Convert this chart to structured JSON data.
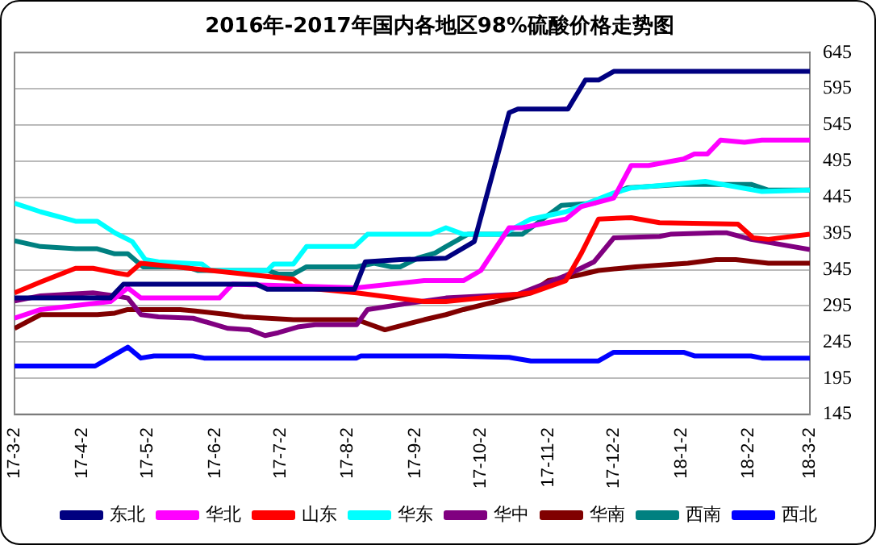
{
  "chart_data": {
    "type": "line",
    "title": "2016年-2017年国内各地区98%硫酸价格走势图",
    "xlim": [
      "2017-03-02",
      "2018-03-02"
    ],
    "xticks": [
      {
        "value": "2017-03-02",
        "label": "17-3-2"
      },
      {
        "value": "2017-04-02",
        "label": "17-4-2"
      },
      {
        "value": "2017-05-02",
        "label": "17-5-2"
      },
      {
        "value": "2017-06-02",
        "label": "17-6-2"
      },
      {
        "value": "2017-07-02",
        "label": "17-7-2"
      },
      {
        "value": "2017-08-02",
        "label": "17-8-2"
      },
      {
        "value": "2017-09-02",
        "label": "17-9-2"
      },
      {
        "value": "2017-10-02",
        "label": "17-10-2"
      },
      {
        "value": "2017-11-02",
        "label": "17-11-2"
      },
      {
        "value": "2017-12-02",
        "label": "17-12-2"
      },
      {
        "value": "2018-01-02",
        "label": "18-1-2"
      },
      {
        "value": "2018-02-02",
        "label": "18-2-2"
      },
      {
        "value": "2018-03-02",
        "label": "18-3-2"
      }
    ],
    "ylim": [
      145,
      645
    ],
    "yticks": [
      145,
      195,
      245,
      295,
      345,
      395,
      445,
      495,
      545,
      595,
      645
    ],
    "grid": "y",
    "legend": "bottom",
    "marker": "none",
    "line_style": "solid",
    "series": [
      {
        "name": "东北",
        "color": "#000080",
        "x": [
          "2017-03-02",
          "2017-04-15",
          "2017-04-21",
          "2017-06-21",
          "2017-06-26",
          "2017-08-05",
          "2017-08-10",
          "2017-08-26",
          "2017-09-16",
          "2017-09-29",
          "2017-10-15",
          "2017-10-19",
          "2017-11-11",
          "2017-11-19",
          "2017-11-25",
          "2017-12-02",
          "2018-03-02"
        ],
        "values": [
          306,
          306,
          325,
          325,
          318,
          318,
          356,
          359,
          361,
          384,
          562,
          567,
          567,
          607,
          607,
          619,
          619
        ]
      },
      {
        "name": "华北",
        "color": "#ff00ff",
        "x": [
          "2017-03-02",
          "2017-03-14",
          "2017-04-15",
          "2017-04-23",
          "2017-04-29",
          "2017-06-04",
          "2017-06-10",
          "2017-08-06",
          "2017-09-06",
          "2017-09-24",
          "2017-10-02",
          "2017-10-15",
          "2017-10-21",
          "2017-11-10",
          "2017-11-17",
          "2017-12-02",
          "2017-12-10",
          "2017-12-18",
          "2018-01-03",
          "2018-01-08",
          "2018-01-14",
          "2018-01-20",
          "2018-01-31",
          "2018-02-08",
          "2018-03-02"
        ],
        "values": [
          278,
          290,
          301,
          320,
          306,
          306,
          325,
          320,
          330,
          330,
          344,
          403,
          403,
          415,
          432,
          444,
          489,
          489,
          498,
          505,
          505,
          524,
          521,
          524,
          524
        ]
      },
      {
        "name": "山东",
        "color": "#ff0000",
        "x": [
          "2017-03-02",
          "2017-03-14",
          "2017-03-30",
          "2017-04-07",
          "2017-04-17",
          "2017-04-23",
          "2017-04-29",
          "2017-05-31",
          "2017-07-08",
          "2017-07-13",
          "2017-08-06",
          "2017-09-06",
          "2017-09-16",
          "2017-10-25",
          "2017-11-10",
          "2017-11-17",
          "2017-11-25",
          "2017-12-10",
          "2017-12-23",
          "2018-01-28",
          "2018-02-04",
          "2018-02-11",
          "2018-03-02"
        ],
        "values": [
          313,
          328,
          347,
          347,
          341,
          338,
          354,
          344,
          332,
          320,
          313,
          301,
          301,
          313,
          330,
          367,
          415,
          417,
          410,
          408,
          389,
          387,
          394
        ]
      },
      {
        "name": "华东",
        "color": "#00ffff",
        "x": [
          "2017-03-02",
          "2017-03-14",
          "2017-03-30",
          "2017-04-09",
          "2017-04-17",
          "2017-04-25",
          "2017-05-01",
          "2017-05-07",
          "2017-05-27",
          "2017-05-31",
          "2017-06-26",
          "2017-06-29",
          "2017-07-08",
          "2017-07-14",
          "2017-08-05",
          "2017-08-11",
          "2017-09-09",
          "2017-09-16",
          "2017-09-24",
          "2017-10-12",
          "2017-10-25",
          "2017-11-10",
          "2017-11-20",
          "2017-12-02",
          "2017-12-10",
          "2018-01-13",
          "2018-01-26",
          "2018-02-08",
          "2018-03-02"
        ],
        "values": [
          437,
          425,
          412,
          412,
          396,
          384,
          359,
          356,
          353,
          344,
          344,
          353,
          353,
          377,
          377,
          394,
          394,
          403,
          394,
          394,
          415,
          425,
          437,
          451,
          458,
          467,
          460,
          453,
          455
        ]
      },
      {
        "name": "华中",
        "color": "#800080",
        "x": [
          "2017-03-02",
          "2017-03-14",
          "2017-04-07",
          "2017-04-17",
          "2017-04-23",
          "2017-04-29",
          "2017-05-07",
          "2017-05-23",
          "2017-06-08",
          "2017-06-18",
          "2017-06-25",
          "2017-07-01",
          "2017-07-10",
          "2017-07-18",
          "2017-08-06",
          "2017-08-11",
          "2017-08-26",
          "2017-09-16",
          "2017-10-19",
          "2017-11-10",
          "2017-11-23",
          "2017-12-02",
          "2017-12-23",
          "2017-12-28",
          "2018-01-18",
          "2018-01-23",
          "2018-02-03",
          "2018-03-02"
        ],
        "values": [
          302,
          309,
          313,
          309,
          306,
          283,
          280,
          278,
          264,
          262,
          254,
          258,
          266,
          269,
          269,
          290,
          297,
          306,
          311,
          337,
          356,
          389,
          391,
          394,
          396,
          396,
          387,
          373
        ]
      },
      {
        "name": "华南",
        "color": "#800000",
        "x": [
          "2017-03-02",
          "2017-03-14",
          "2017-04-09",
          "2017-04-17",
          "2017-04-23",
          "2017-05-17",
          "2017-05-24",
          "2017-06-08",
          "2017-06-15",
          "2017-07-08",
          "2017-08-06",
          "2017-08-19",
          "2017-09-06",
          "2017-09-16",
          "2017-09-24",
          "2017-10-25",
          "2017-11-02",
          "2017-11-15",
          "2017-11-25",
          "2017-12-12",
          "2018-01-05",
          "2018-01-18",
          "2018-01-27",
          "2018-02-11",
          "2018-03-02"
        ],
        "values": [
          264,
          283,
          283,
          285,
          290,
          290,
          288,
          283,
          280,
          276,
          276,
          262,
          276,
          283,
          290,
          313,
          330,
          337,
          344,
          349,
          354,
          359,
          359,
          354,
          354
        ]
      },
      {
        "name": "西南",
        "color": "#008080",
        "x": [
          "2017-03-02",
          "2017-03-14",
          "2017-03-30",
          "2017-04-09",
          "2017-04-17",
          "2017-04-23",
          "2017-04-30",
          "2017-05-20",
          "2017-05-25",
          "2017-06-26",
          "2017-07-01",
          "2017-07-08",
          "2017-07-14",
          "2017-08-06",
          "2017-08-14",
          "2017-08-22",
          "2017-08-26",
          "2017-09-03",
          "2017-09-11",
          "2017-09-16",
          "2017-09-26",
          "2017-10-21",
          "2017-11-08",
          "2017-11-23",
          "2017-12-08",
          "2018-01-03",
          "2018-02-03",
          "2018-02-11",
          "2018-03-02"
        ],
        "values": [
          385,
          377,
          374,
          374,
          367,
          367,
          349,
          349,
          344,
          344,
          339,
          339,
          349,
          349,
          354,
          349,
          349,
          361,
          368,
          377,
          394,
          394,
          434,
          437,
          458,
          463,
          463,
          455,
          455
        ]
      },
      {
        "name": "西北",
        "color": "#0000ff",
        "x": [
          "2017-03-02",
          "2017-04-08",
          "2017-04-23",
          "2017-04-29",
          "2017-05-05",
          "2017-05-23",
          "2017-05-28",
          "2017-08-06",
          "2017-08-08",
          "2017-09-16",
          "2017-10-15",
          "2017-10-25",
          "2017-11-25",
          "2017-12-02",
          "2018-01-03",
          "2018-01-08",
          "2018-02-03",
          "2018-02-08",
          "2018-03-02"
        ],
        "values": [
          212,
          212,
          238,
          223,
          226,
          226,
          223,
          223,
          226,
          226,
          224,
          219,
          219,
          231,
          231,
          226,
          226,
          223,
          223
        ]
      }
    ]
  }
}
